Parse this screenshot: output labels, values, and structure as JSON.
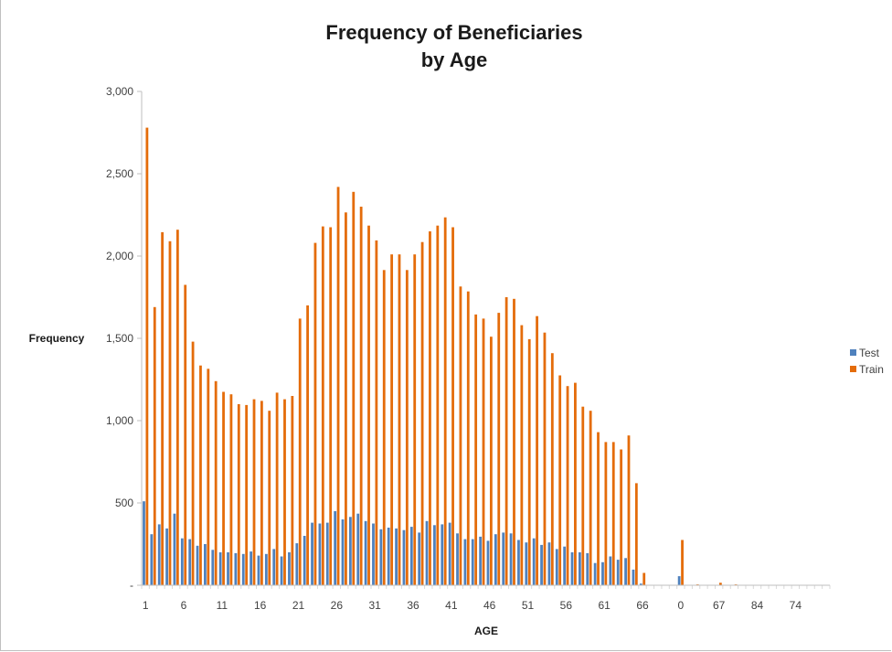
{
  "chart_data": {
    "type": "bar",
    "title_line1": "Frequency of Beneficiaries",
    "title_line2": "by Age",
    "xlabel": "AGE",
    "ylabel": "Frequency",
    "ylim": [
      0,
      3000
    ],
    "y_ticks": [
      {
        "value": 0,
        "label": "-"
      },
      {
        "value": 500,
        "label": "500"
      },
      {
        "value": 1000,
        "label": "1,000"
      },
      {
        "value": 1500,
        "label": "1,500"
      },
      {
        "value": 2000,
        "label": "2,000"
      },
      {
        "value": 2500,
        "label": "2,500"
      },
      {
        "value": 3000,
        "label": "3,000"
      }
    ],
    "x_tick_labels": [
      {
        "index": 0,
        "label": "1"
      },
      {
        "index": 5,
        "label": "6"
      },
      {
        "index": 10,
        "label": "11"
      },
      {
        "index": 15,
        "label": "16"
      },
      {
        "index": 20,
        "label": "21"
      },
      {
        "index": 25,
        "label": "26"
      },
      {
        "index": 30,
        "label": "31"
      },
      {
        "index": 35,
        "label": "36"
      },
      {
        "index": 40,
        "label": "41"
      },
      {
        "index": 45,
        "label": "46"
      },
      {
        "index": 50,
        "label": "51"
      },
      {
        "index": 55,
        "label": "56"
      },
      {
        "index": 60,
        "label": "61"
      },
      {
        "index": 65,
        "label": "66"
      },
      {
        "index": 70,
        "label": "0"
      },
      {
        "index": 75,
        "label": "67"
      },
      {
        "index": 80,
        "label": "84"
      },
      {
        "index": 85,
        "label": "74"
      }
    ],
    "category_count": 90,
    "legend_position": "right",
    "grid": false,
    "series": [
      {
        "name": "Test",
        "color": "#4f81bd",
        "values": [
          510,
          310,
          370,
          345,
          435,
          285,
          280,
          240,
          250,
          215,
          200,
          200,
          195,
          190,
          205,
          180,
          190,
          220,
          175,
          200,
          255,
          300,
          380,
          375,
          380,
          450,
          400,
          415,
          435,
          390,
          375,
          340,
          350,
          345,
          335,
          355,
          320,
          390,
          365,
          370,
          380,
          315,
          280,
          280,
          295,
          270,
          310,
          320,
          315,
          275,
          260,
          285,
          245,
          260,
          220,
          235,
          200,
          200,
          195,
          135,
          140,
          175,
          155,
          165,
          95,
          10,
          0,
          0,
          0,
          0,
          55,
          0,
          0,
          0,
          0,
          0,
          0,
          0,
          0,
          0,
          0,
          0,
          0,
          0,
          0,
          0,
          0,
          0,
          0,
          0
        ]
      },
      {
        "name": "Train",
        "color": "#e46c0a",
        "values": [
          2780,
          1690,
          2145,
          2090,
          2160,
          1825,
          1480,
          1335,
          1315,
          1240,
          1175,
          1160,
          1100,
          1095,
          1130,
          1120,
          1060,
          1170,
          1130,
          1150,
          1620,
          1700,
          2080,
          2180,
          2175,
          2420,
          2265,
          2390,
          2300,
          2185,
          2095,
          1915,
          2010,
          2010,
          1915,
          2010,
          2085,
          2150,
          2185,
          2235,
          2175,
          1815,
          1785,
          1645,
          1620,
          1510,
          1655,
          1750,
          1740,
          1580,
          1495,
          1635,
          1535,
          1410,
          1275,
          1210,
          1230,
          1085,
          1060,
          930,
          870,
          870,
          825,
          910,
          620,
          75,
          0,
          0,
          0,
          0,
          275,
          0,
          5,
          0,
          0,
          15,
          0,
          5,
          0,
          0,
          0,
          0,
          0,
          0,
          0,
          0,
          0,
          0,
          0,
          0
        ]
      }
    ]
  }
}
